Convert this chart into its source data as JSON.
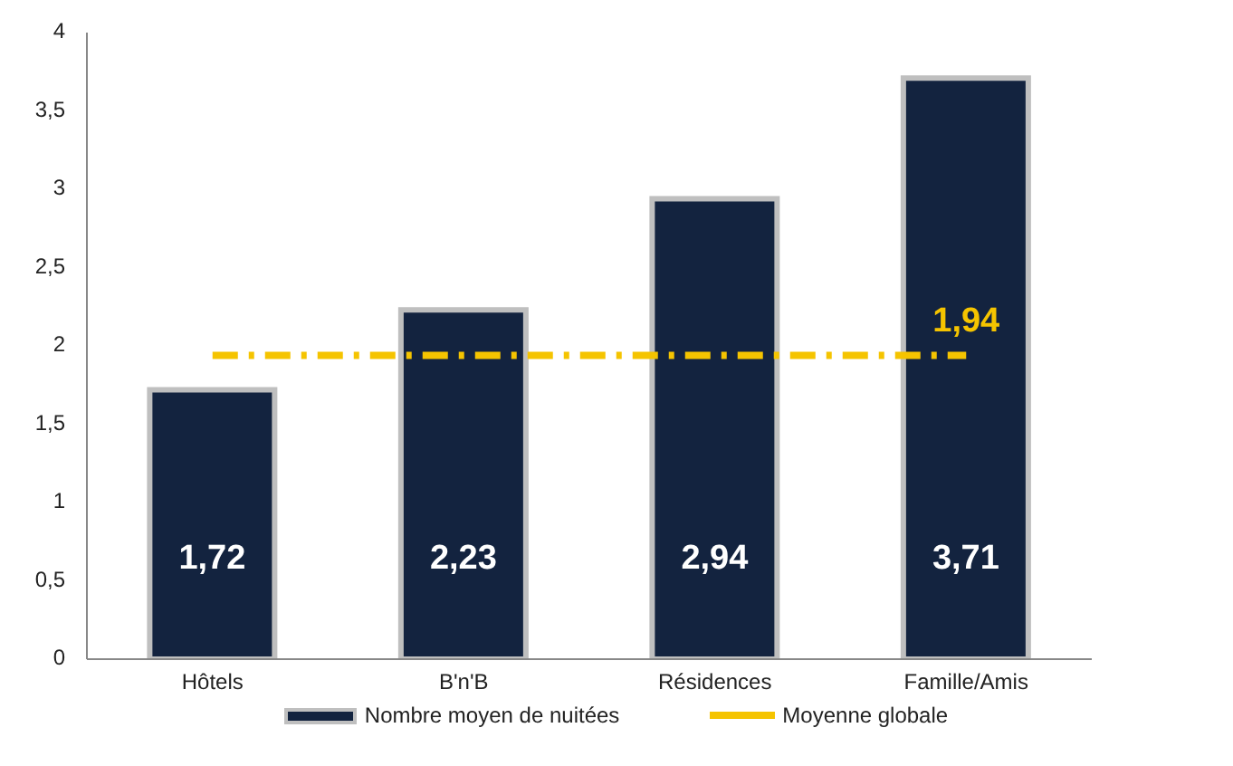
{
  "chart_data": {
    "type": "bar",
    "categories": [
      "Hôtels",
      "B'n'B",
      "Résidences",
      "Famille/Amis"
    ],
    "series": [
      {
        "name": "Nombre moyen de nuitées",
        "color": "#13233f",
        "values": [
          1.72,
          2.23,
          2.94,
          3.71
        ],
        "value_labels": [
          "1,72",
          "2,23",
          "2,94",
          "3,71"
        ]
      },
      {
        "name": "Moyenne globale",
        "type": "line",
        "color": "#f5c400",
        "line_style": "dashed",
        "marker": "none",
        "values": [
          1.94,
          1.94,
          1.94,
          1.94
        ],
        "value_labels": [
          null,
          null,
          null,
          "1,94"
        ]
      }
    ],
    "ylim": [
      0,
      4
    ],
    "yticks": [
      0,
      {
        "value": 0.5,
        "label": "0,5"
      },
      1,
      {
        "value": 1.5,
        "label": "1,5"
      },
      2,
      {
        "value": 2.5,
        "label": "2,5"
      },
      3,
      {
        "value": 3.5,
        "label": "3,5"
      },
      4
    ],
    "grid": false,
    "legend": "bottom"
  }
}
